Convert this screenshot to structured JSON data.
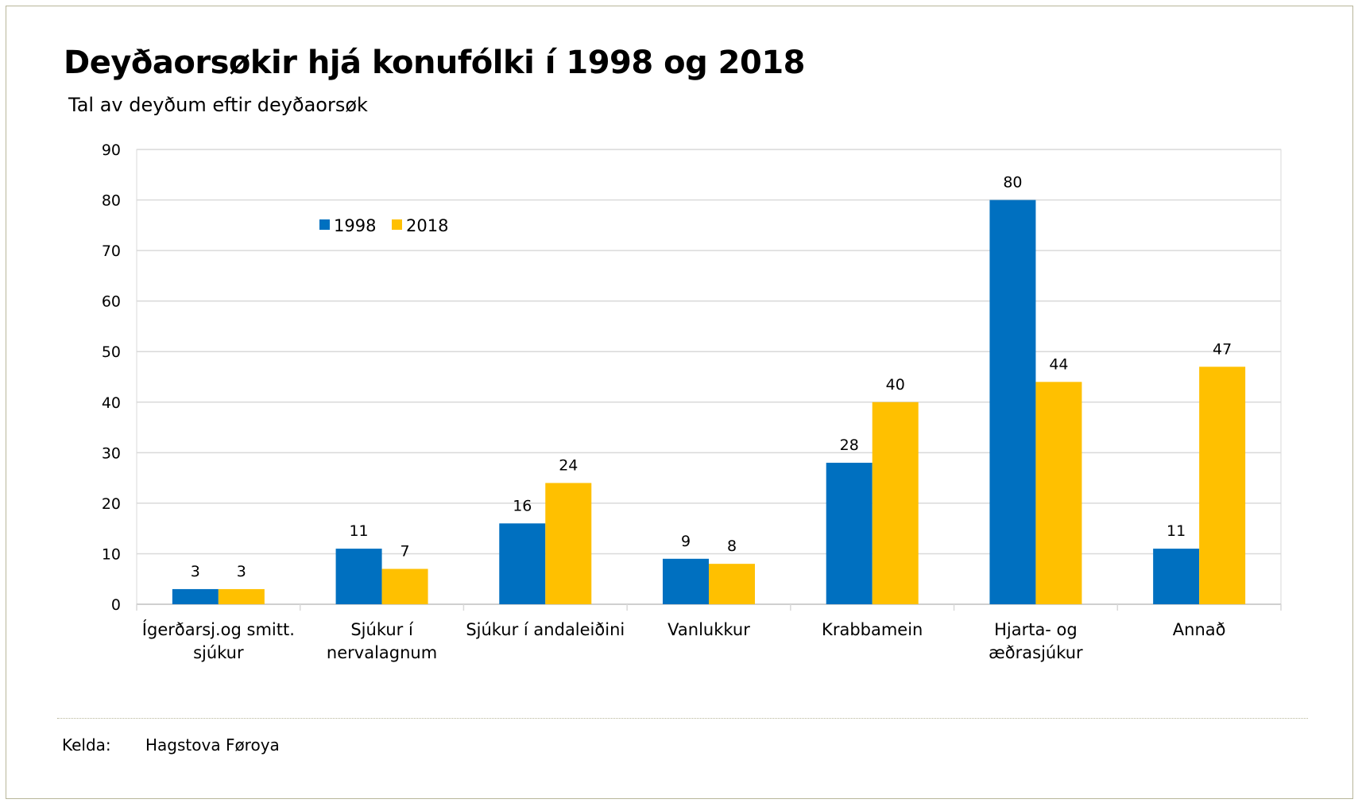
{
  "chart_data": {
    "type": "bar",
    "title": "Deyðaorsøkir hjá konufólki í 1998 og 2018",
    "subtitle": "Tal av deyðum eftir deyðaorsøk",
    "categories": [
      [
        "Ígerðarsj.og smitt.",
        "sjúkur"
      ],
      [
        "Sjúkur í",
        "nervalagnum"
      ],
      [
        "Sjúkur í andaleiðini"
      ],
      [
        "Vanlukkur"
      ],
      [
        "Krabbamein"
      ],
      [
        "Hjarta- og",
        "æðrasjúkur"
      ],
      [
        "Annað"
      ]
    ],
    "series": [
      {
        "name": "1998",
        "color": "#0070c0",
        "values": [
          3,
          11,
          16,
          9,
          28,
          80,
          11
        ]
      },
      {
        "name": "2018",
        "color": "#ffc000",
        "values": [
          3,
          7,
          24,
          8,
          40,
          44,
          47
        ]
      }
    ],
    "ylim": [
      0,
      90
    ],
    "yticks": [
      0,
      10,
      20,
      30,
      40,
      50,
      60,
      70,
      80,
      90
    ],
    "grid": true,
    "legend_position": "top-left",
    "xlabel": "",
    "ylabel": ""
  },
  "source": {
    "label": "Kelda:",
    "value": "Hagstova Føroya"
  }
}
